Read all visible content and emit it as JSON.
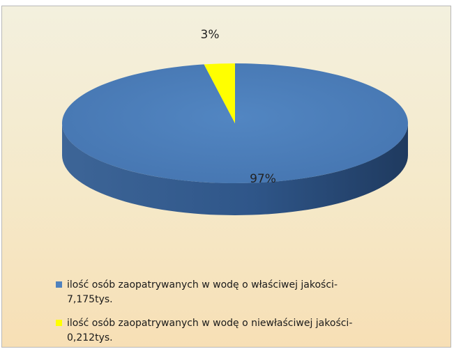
{
  "chart_data": {
    "type": "pie",
    "three_d": true,
    "slices": [
      {
        "label": "ilość osób zaopatrywanych w wodę o właściwej jakości- 7,175tys.",
        "value": 7.175,
        "percent_label": "97%",
        "color": "#4f81bd"
      },
      {
        "label": "ilość osób zaopatrywanych w wodę o niewłaściwej jakości- 0,212tys.",
        "value": 0.212,
        "percent_label": "3%",
        "color": "#ffff00"
      }
    ],
    "legend": {
      "position": "bottom",
      "items": [
        {
          "line1": "ilość osób zaopatrywanych w wodę o właściwej jakości-",
          "line2": "7,175tys.",
          "color": "#4f81bd"
        },
        {
          "line1": "ilość osób zaopatrywanych w wodę o niewłaściwej jakości-",
          "line2": "0,212tys.",
          "color": "#ffff00"
        }
      ]
    }
  }
}
